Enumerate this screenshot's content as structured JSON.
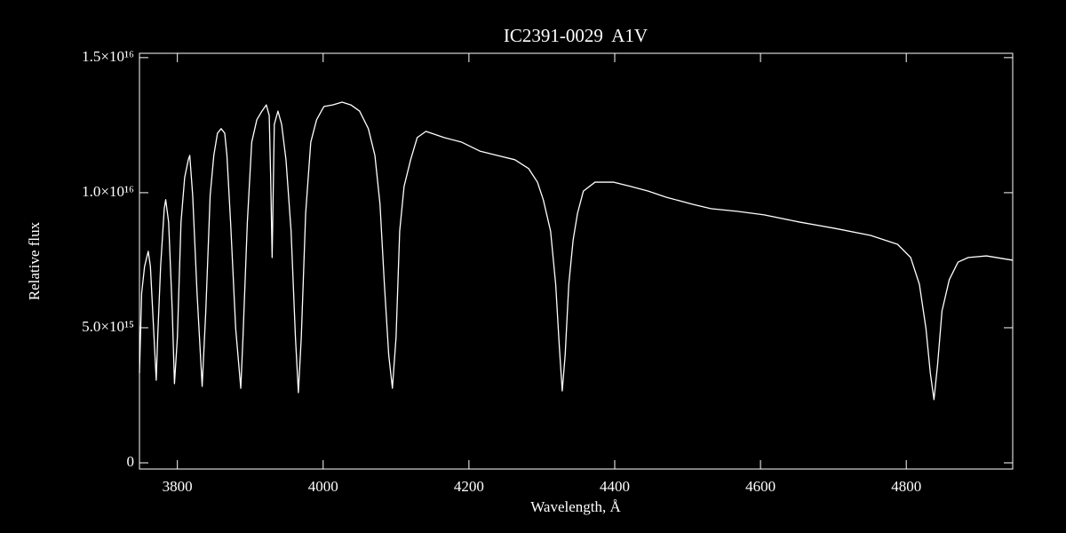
{
  "chart_data": {
    "type": "line",
    "title": "IC2391-0029  A1V",
    "x_label": "Wavelength, Å",
    "y_label": "Relative flux",
    "color": "#ffffff",
    "xlim": [
      3748,
      4946
    ],
    "ylim": [
      -230000000000000.0,
      1.516e+16
    ],
    "xticks": [
      3800,
      4000,
      4200,
      4400,
      4600,
      4800
    ],
    "yticks": [
      0,
      {
        "value": 5000000000000000.0,
        "label": "5.0×10¹⁵"
      },
      {
        "value": 1e+16,
        "label": "1.0×10¹⁶"
      },
      {
        "value": 1.5e+16,
        "label": "1.5×10¹⁶"
      }
    ],
    "x": [
      3748,
      3751,
      3755,
      3760,
      3763,
      3768,
      3771,
      3773,
      3777,
      3782,
      3784,
      3788,
      3793,
      3796,
      3800,
      3805,
      3810,
      3815,
      3817,
      3821,
      3827,
      3834,
      3839,
      3845,
      3850,
      3855,
      3860,
      3865,
      3868,
      3873,
      3880,
      3887,
      3890,
      3896,
      3902,
      3909,
      3916,
      3922,
      3926,
      3928,
      3930,
      3933,
      3938,
      3943,
      3949,
      3956,
      3962,
      3966,
      3970,
      3976,
      3983,
      3991,
      4001,
      4013,
      4026,
      4038,
      4050,
      4062,
      4071,
      4078,
      4084,
      4090,
      4095,
      4100,
      4105,
      4111,
      4120,
      4129,
      4141,
      4166,
      4190,
      4215,
      4239,
      4263,
      4282,
      4294,
      4302,
      4312,
      4319,
      4324,
      4328,
      4332,
      4337,
      4343,
      4349,
      4357,
      4373,
      4398,
      4422,
      4446,
      4471,
      4507,
      4532,
      4568,
      4605,
      4654,
      4702,
      4751,
      4788,
      4806,
      4818,
      4827,
      4833,
      4838,
      4843,
      4849,
      4859,
      4871,
      4885,
      4910,
      4946
    ],
    "values": [
      3320000000000000.0,
      6280000000000000.0,
      7270000000000000.0,
      7830000000000000.0,
      7270000000000000.0,
      4640000000000000.0,
      3060000000000000.0,
      4640000000000000.0,
      7270000000000000.0,
      9410000000000000.0,
      9740000000000000.0,
      8910000000000000.0,
      5620000000000000.0,
      2930000000000000.0,
      4640000000000000.0,
      8910000000000000.0,
      1.056e+16,
      1.122e+16,
      1.138e+16,
      9900000000000000.0,
      6280000000000000.0,
      2830000000000000.0,
      5620000000000000.0,
      9900000000000000.0,
      1.138e+16,
      1.22e+16,
      1.237e+16,
      1.22e+16,
      1.138e+16,
      8910000000000000.0,
      4970000000000000.0,
      2760000000000000.0,
      4640000000000000.0,
      8910000000000000.0,
      1.187e+16,
      1.27e+16,
      1.302e+16,
      1.325e+16,
      1.286e+16,
      1.056e+16,
      7600000000000000.0,
      1.253e+16,
      1.302e+16,
      1.253e+16,
      1.122e+16,
      8580000000000000.0,
      4640000000000000.0,
      2600000000000000.0,
      4640000000000000.0,
      9240000000000000.0,
      1.187e+16,
      1.27e+16,
      1.319e+16,
      1.325e+16,
      1.335e+16,
      1.325e+16,
      1.302e+16,
      1.237e+16,
      1.138e+16,
      9570000000000000.0,
      6610000000000000.0,
      3980000000000000.0,
      2760000000000000.0,
      4640000000000000.0,
      8580000000000000.0,
      1.023e+16,
      1.122e+16,
      1.204e+16,
      1.227e+16,
      1.204e+16,
      1.187e+16,
      1.154e+16,
      1.138e+16,
      1.122e+16,
      1.089e+16,
      1.039e+16,
      9740000000000000.0,
      8580000000000000.0,
      6610000000000000.0,
      4310000000000000.0,
      2660000000000000.0,
      3980000000000000.0,
      6610000000000000.0,
      8260000000000000.0,
      9240000000000000.0,
      1.006e+16,
      1.039e+16,
      1.039e+16,
      1.023e+16,
      1.006e+16,
      9830000000000000.0,
      9570000000000000.0,
      9410000000000000.0,
      9310000000000000.0,
      9180000000000000.0,
      8910000000000000.0,
      8680000000000000.0,
      8420000000000000.0,
      8090000000000000.0,
      7600000000000000.0,
      6610000000000000.0,
      4970000000000000.0,
      3320000000000000.0,
      2340000000000000.0,
      3650000000000000.0,
      5620000000000000.0,
      6780000000000000.0,
      7430000000000000.0,
      7600000000000000.0,
      7660000000000000.0,
      7500000000000000.0
    ]
  }
}
